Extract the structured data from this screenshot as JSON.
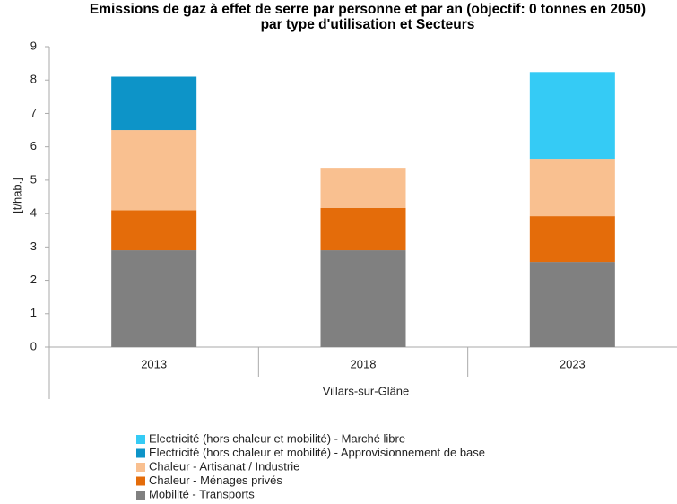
{
  "chart_data": {
    "type": "stacked_bar",
    "title": "Emissions de gaz à effet de serre par personne et par an (objectif: 0 tonnes en 2050) par type d'utilisation et Secteurs",
    "ylabel": "[t/hab.]",
    "group_label": "Villars-sur-Glâne",
    "categories": [
      "2013",
      "2018",
      "2023"
    ],
    "series": [
      {
        "name": "Mobilité - Transports",
        "color": "#808080",
        "values": [
          2.9,
          2.9,
          2.55
        ]
      },
      {
        "name": "Chaleur - Ménages privés",
        "color": "#e46c0a",
        "values": [
          1.2,
          1.27,
          1.37
        ]
      },
      {
        "name": "Chaleur - Artisanat / Industrie",
        "color": "#f9c090",
        "values": [
          2.4,
          1.2,
          1.72
        ]
      },
      {
        "name": "Electricité (hors chaleur et mobilité) - Approvisionnement de base",
        "color": "#0d94c8",
        "values": [
          1.6,
          0,
          0
        ]
      },
      {
        "name": "Electricité (hors chaleur et mobilité) - Marché libre",
        "color": "#35cbf5",
        "values": [
          0,
          0,
          2.6
        ]
      }
    ],
    "ylim": [
      0,
      9
    ],
    "yticks": [
      0,
      1,
      2,
      3,
      4,
      5,
      6,
      7,
      8,
      9
    ],
    "grid": false
  }
}
